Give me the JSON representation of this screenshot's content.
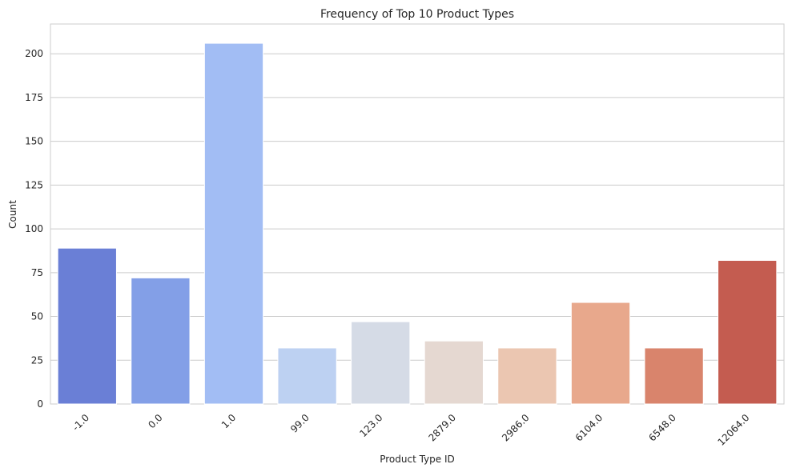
{
  "chart_data": {
    "type": "bar",
    "title": "Frequency of Top 10 Product Types",
    "xlabel": "Product Type ID",
    "ylabel": "Count",
    "categories": [
      "-1.0",
      "0.0",
      "1.0",
      "99.0",
      "123.0",
      "2879.0",
      "2986.0",
      "6104.0",
      "6548.0",
      "12064.0"
    ],
    "values": [
      89,
      72,
      206,
      32,
      47,
      36,
      32,
      58,
      32,
      82
    ],
    "colors": [
      "#6a7fd6",
      "#839fe7",
      "#a2bdf4",
      "#bdd1f2",
      "#d5dbe6",
      "#e5d8d1",
      "#ebc6b1",
      "#e8a88c",
      "#d9846c",
      "#c45c50"
    ],
    "ylim": [
      0,
      217
    ],
    "yticks": [
      0,
      25,
      50,
      75,
      100,
      125,
      150,
      175,
      200
    ],
    "xtick_rotation": 45,
    "grid": "y"
  }
}
